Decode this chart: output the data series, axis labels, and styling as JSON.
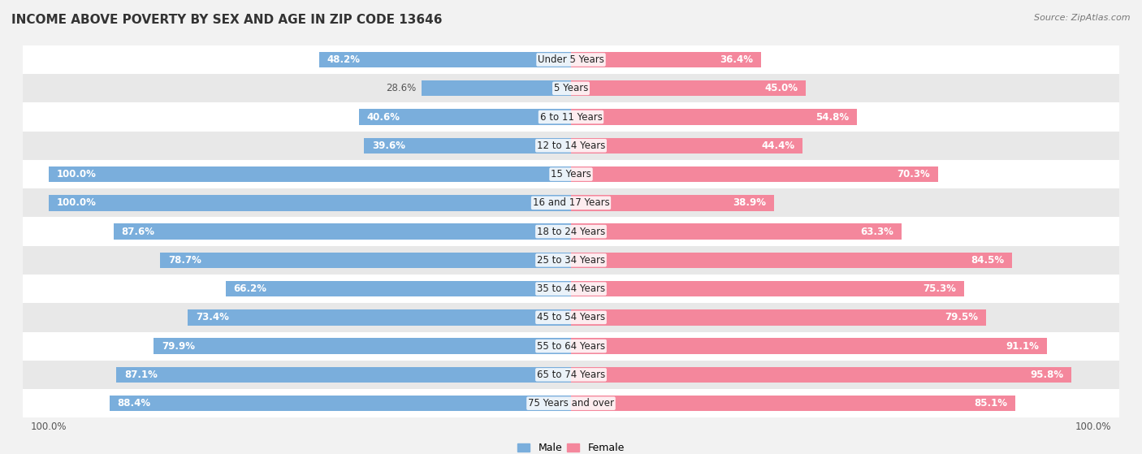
{
  "title": "INCOME ABOVE POVERTY BY SEX AND AGE IN ZIP CODE 13646",
  "source": "Source: ZipAtlas.com",
  "categories": [
    "Under 5 Years",
    "5 Years",
    "6 to 11 Years",
    "12 to 14 Years",
    "15 Years",
    "16 and 17 Years",
    "18 to 24 Years",
    "25 to 34 Years",
    "35 to 44 Years",
    "45 to 54 Years",
    "55 to 64 Years",
    "65 to 74 Years",
    "75 Years and over"
  ],
  "male_values": [
    48.2,
    28.6,
    40.6,
    39.6,
    100.0,
    100.0,
    87.6,
    78.7,
    66.2,
    73.4,
    79.9,
    87.1,
    88.4
  ],
  "female_values": [
    36.4,
    45.0,
    54.8,
    44.4,
    70.3,
    38.9,
    63.3,
    84.5,
    75.3,
    79.5,
    91.1,
    95.8,
    85.1
  ],
  "male_color": "#7aaedc",
  "female_color": "#f4879c",
  "bar_height": 0.55,
  "background_color": "#f2f2f2",
  "row_colors": [
    "#ffffff",
    "#e8e8e8"
  ],
  "title_fontsize": 11,
  "label_fontsize": 8.5,
  "tick_fontsize": 8.5,
  "legend_fontsize": 9,
  "source_fontsize": 8
}
